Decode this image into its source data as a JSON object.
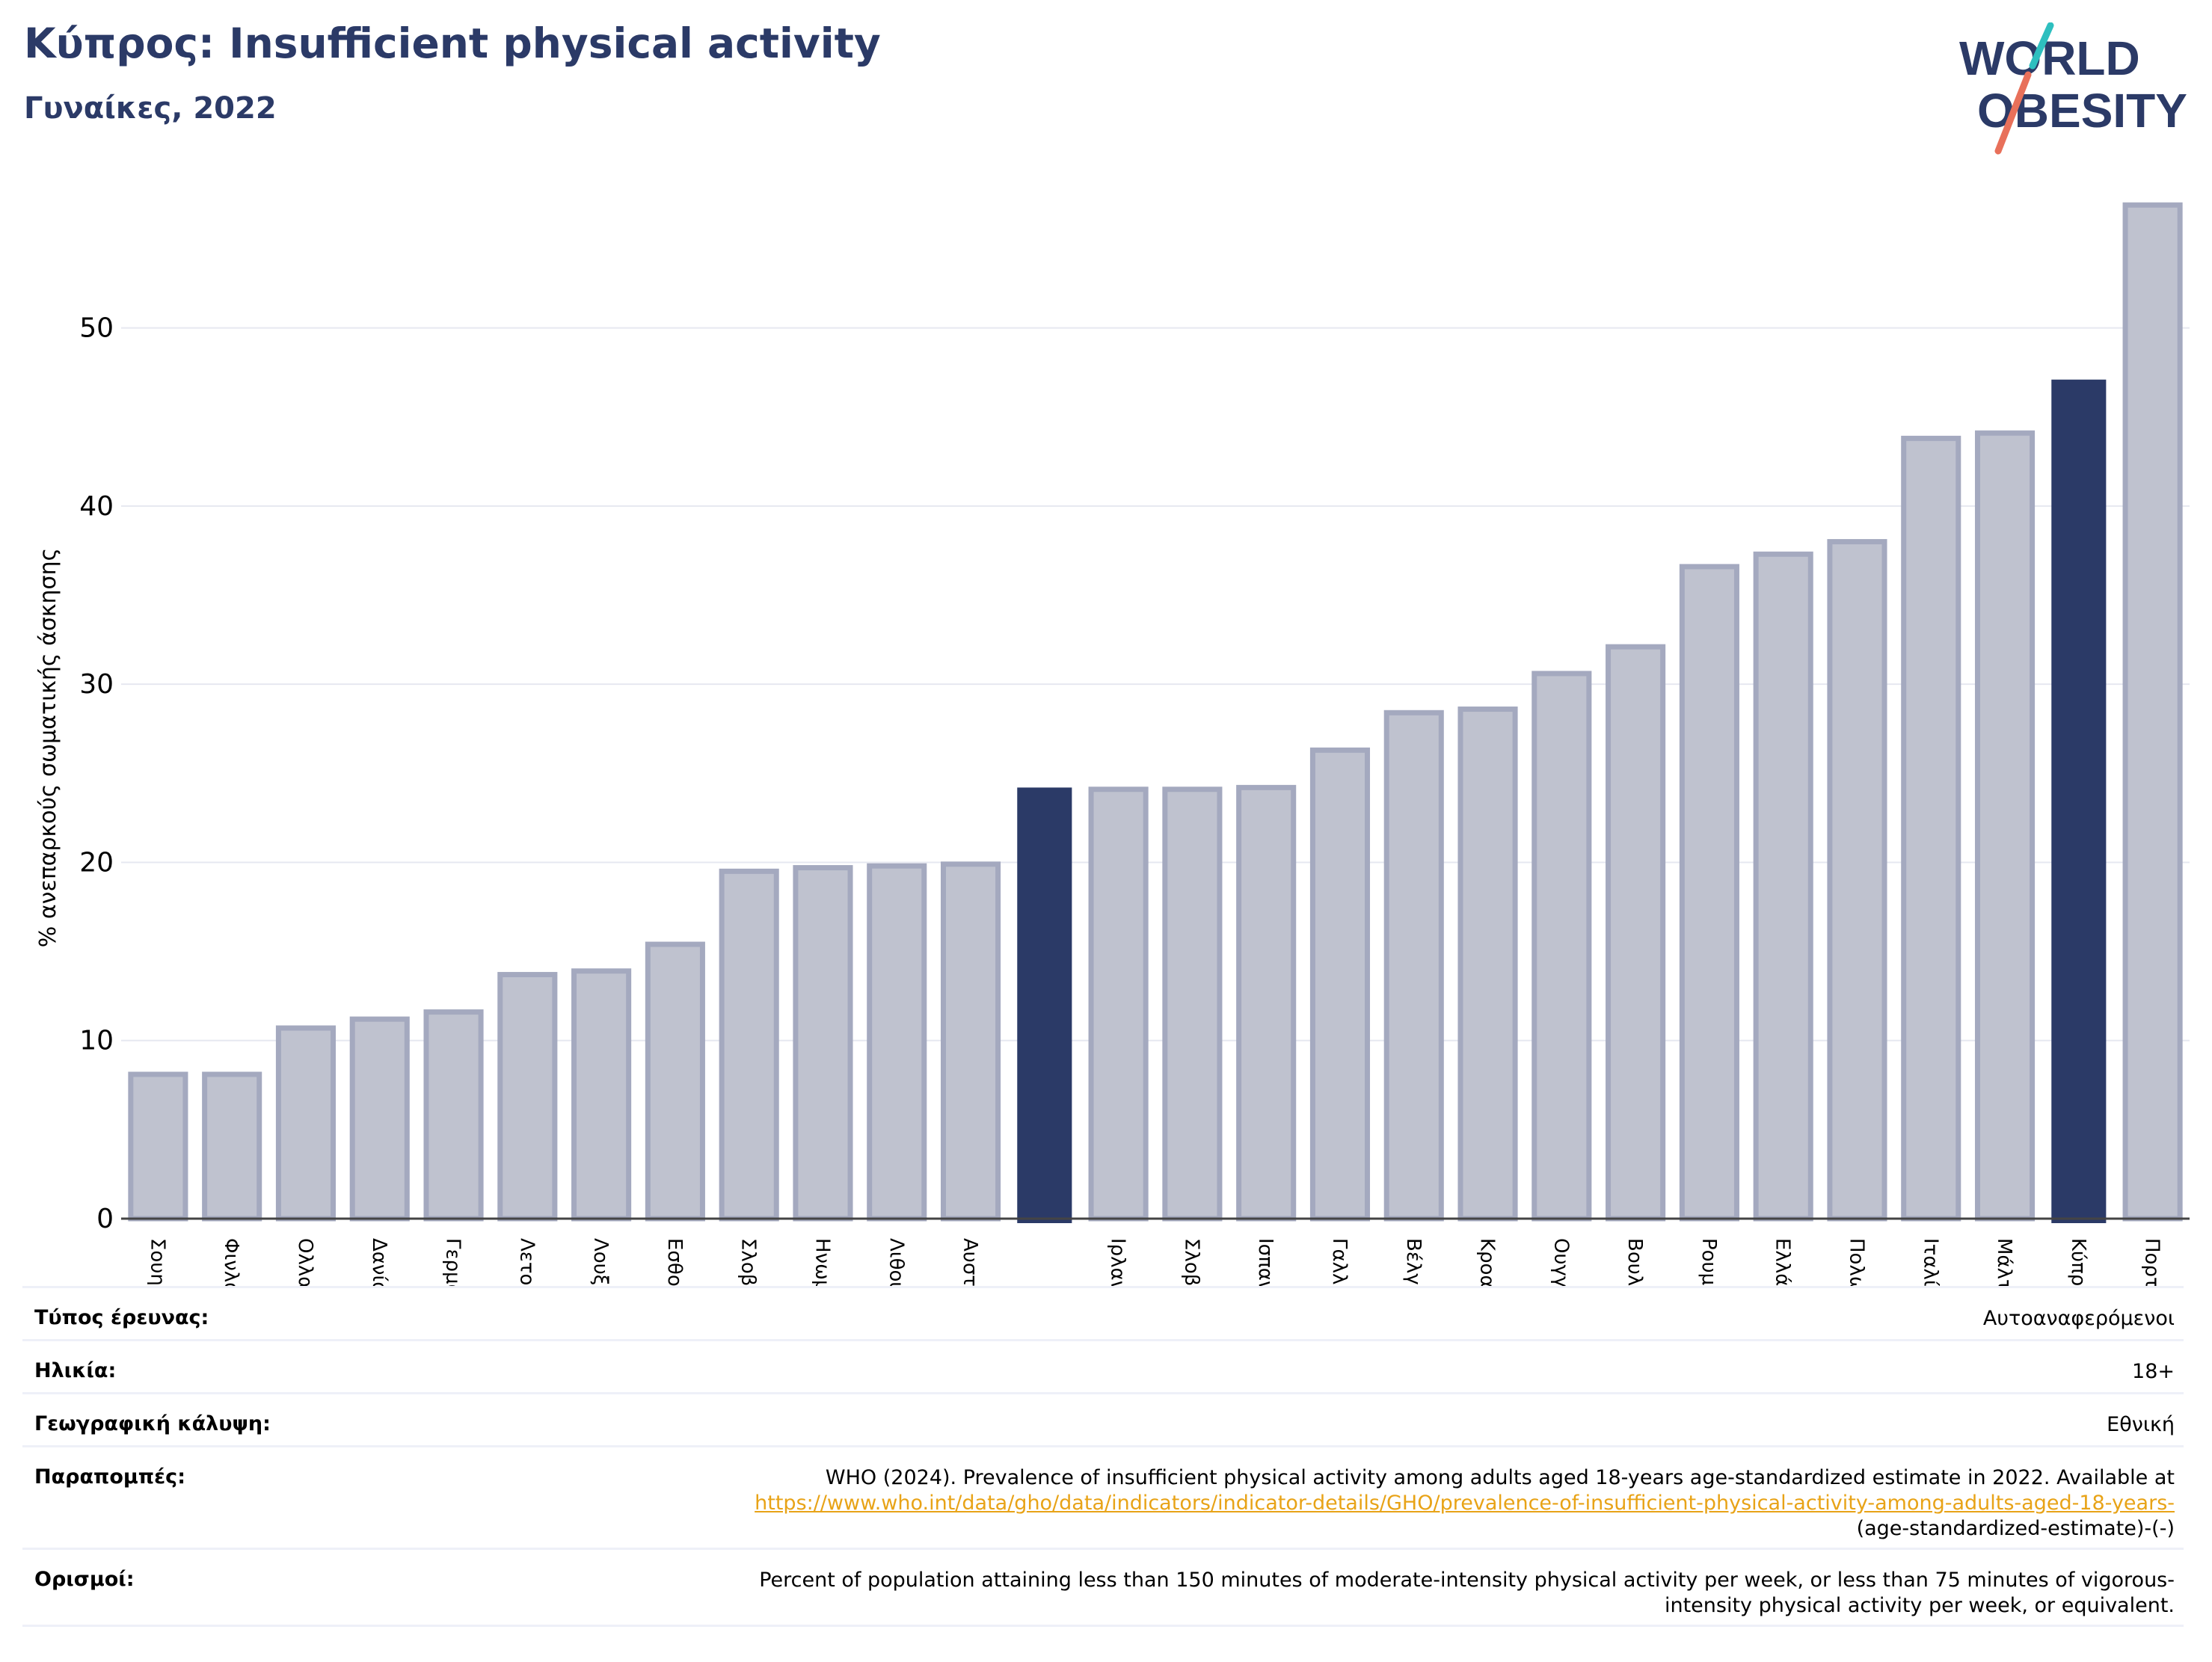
{
  "header": {
    "title": "Κύπρος: Insufficient physical activity",
    "subtitle": "Γυναίκες, 2022"
  },
  "logo": {
    "line1": "WORLD",
    "line2": "OBESITY"
  },
  "colors": {
    "primary": "#2b3a67",
    "bar_fill": "#bfc2cf",
    "bar_edge": "#a4a9bf",
    "link": "#e8a317",
    "logo_teal": "#2ebfbf",
    "logo_coral": "#e8705a"
  },
  "chart_data": {
    "type": "bar",
    "title": "Κύπρος: Insufficient physical activity",
    "subtitle": "Γυναίκες, 2022",
    "xlabel": "",
    "ylabel": "% ανεπαρκούς σωματικής άσκησης",
    "ylim": [
      0,
      58
    ],
    "yticks": [
      0,
      10,
      20,
      30,
      40,
      50
    ],
    "grid": true,
    "categories": [
      "Σουηδία",
      "Φινλανδία",
      "Ολλανδία",
      "Δανία",
      "Γερμανία",
      "Λετονία",
      "Λουξεμβούργο",
      "Εσθονία",
      "Σλοβενία",
      "Ηνωμένο Βασίλειο",
      "Λιθουανία",
      "Αυστρία",
      "",
      "Ιρλανδία",
      "Σλοβακία",
      "Ισπανία",
      "Γαλλία",
      "Βέλγιο",
      "Κροατία",
      "Ουγγαρία",
      "Βουλγαρία",
      "Ρουμανία",
      "Ελλάδα",
      "Πολωνία",
      "Ιταλία",
      "Μάλτα",
      "Κύπρος",
      "Πορτογαλία"
    ],
    "values": [
      8.1,
      8.1,
      10.7,
      11.2,
      11.6,
      13.7,
      13.9,
      15.4,
      19.5,
      19.7,
      19.8,
      19.9,
      24.2,
      24.1,
      24.1,
      24.2,
      26.3,
      28.4,
      28.6,
      30.6,
      32.1,
      36.6,
      37.3,
      38.0,
      43.8,
      44.1,
      47.1,
      56.9
    ],
    "highlighted": [
      12,
      26
    ]
  },
  "meta": {
    "survey_type_label": "Τύπος έρευνας:",
    "survey_type_value": "Αυτοαναφερόμενοι",
    "age_label": "Ηλικία:",
    "age_value": "18+",
    "coverage_label": "Γεωγραφική κάλυψη:",
    "coverage_value": "Εθνική",
    "references_label": "Παραπομπές:",
    "references_text": "WHO (2024). Prevalence of insufficient physical activity among adults aged 18-years age-standardized estimate in 2022. Available at",
    "references_link": "https://www.who.int/data/gho/data/indicators/indicator-details/GHO/prevalence-of-insufficient-physical-activity-among-adults-aged-18-years-",
    "references_tail": "(age-standardized-estimate)-(-)",
    "definitions_label": "Ορισμοί:",
    "definitions_line1": "Percent of population attaining less than 150 minutes of moderate-intensity physical activity per week, or less than 75 minutes of vigorous-",
    "definitions_line2": "intensity physical activity per week, or equivalent."
  }
}
